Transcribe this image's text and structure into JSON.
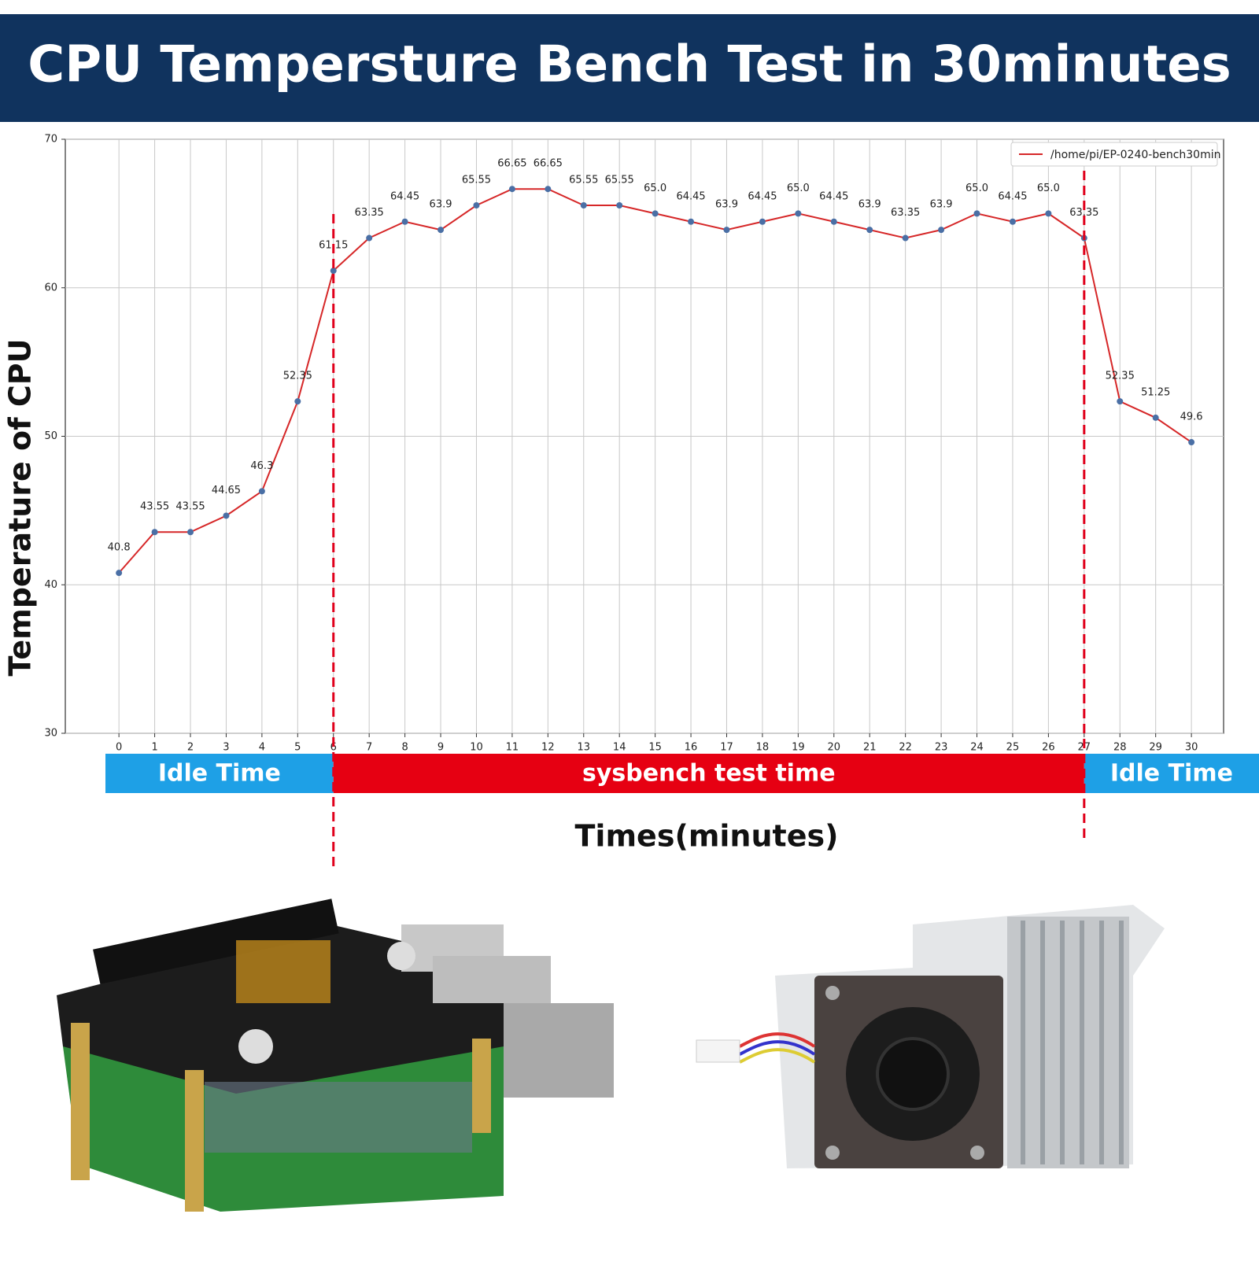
{
  "chart_data": {
    "type": "line",
    "title": "CPU Tempersture Bench Test in 30minutes",
    "xlabel": "Times(minutes)",
    "ylabel": "Temperature of CPU",
    "x": [
      0,
      1,
      2,
      3,
      4,
      5,
      6,
      7,
      8,
      9,
      10,
      11,
      12,
      13,
      14,
      15,
      16,
      17,
      18,
      19,
      20,
      21,
      22,
      23,
      24,
      25,
      26,
      27,
      28,
      29,
      30
    ],
    "series": [
      {
        "name": "/home/pi/EP-0240-bench30min",
        "color": "#d62728",
        "marker_color": "#4a6fa5",
        "values": [
          40.8,
          43.55,
          43.55,
          44.65,
          46.3,
          52.35,
          61.15,
          63.35,
          64.45,
          63.9,
          65.55,
          66.65,
          66.65,
          65.55,
          65.55,
          65.0,
          64.45,
          63.9,
          64.45,
          65.0,
          64.45,
          63.9,
          63.35,
          63.9,
          65.0,
          64.45,
          65.0,
          63.35,
          52.35,
          51.25,
          49.6
        ],
        "value_labels": [
          "40.8",
          "43.55",
          "43.55",
          "44.65",
          "46.3",
          "52.35",
          "61.15",
          "63.35",
          "64.45",
          "63.9",
          "65.55",
          "66.65",
          "66.65",
          "65.55",
          "65.55",
          "65.0",
          "64.45",
          "63.9",
          "64.45",
          "65.0",
          "64.45",
          "63.9",
          "63.35",
          "63.9",
          "65.0",
          "64.45",
          "65.0",
          "63.35",
          "52.35",
          "51.25",
          "49.6"
        ]
      }
    ],
    "xlim": [
      -1.5,
      30.9
    ],
    "ylim": [
      30,
      70
    ],
    "xticks": [
      0,
      1,
      2,
      3,
      4,
      5,
      6,
      7,
      8,
      9,
      10,
      11,
      12,
      13,
      14,
      15,
      16,
      17,
      18,
      19,
      20,
      21,
      22,
      23,
      24,
      25,
      26,
      27,
      28,
      29,
      30
    ],
    "yticks": [
      30,
      40,
      50,
      60,
      70
    ],
    "grid": true,
    "legend": "upper right",
    "vlines": [
      6,
      27
    ],
    "vline_color": "#e0001b",
    "bands": [
      {
        "label": "Idle Time",
        "color": "#1ea0e6"
      },
      {
        "label": "sysbench test time",
        "color": "#e60012"
      },
      {
        "label": "Idle Time",
        "color": "#1ea0e6"
      }
    ]
  }
}
